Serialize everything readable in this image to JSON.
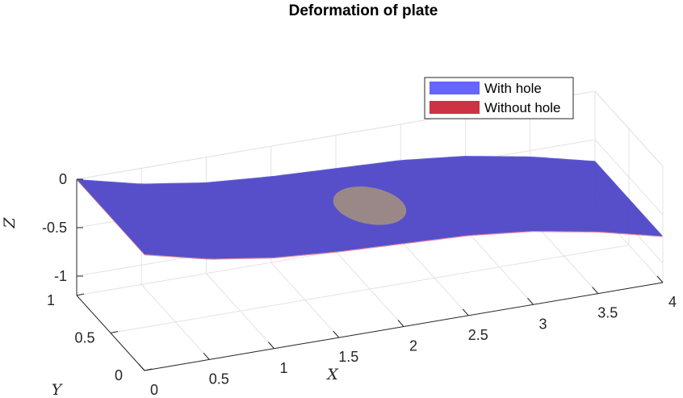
{
  "chart_data": {
    "type": "surface3d",
    "title": "Deformation of plate",
    "xlabel": "X",
    "ylabel": "Y",
    "zlabel": "Z",
    "x_ticks": [
      "0",
      "0.5",
      "1",
      "1.5",
      "2",
      "2.5",
      "3",
      "3.5",
      "4"
    ],
    "y_ticks": [
      "0",
      "0.5",
      "1"
    ],
    "z_ticks": [
      "0",
      "-0.5",
      "-1"
    ],
    "xlim": [
      0,
      4
    ],
    "ylim": [
      0,
      1
    ],
    "zlim": [
      -1.2,
      0
    ],
    "grid": true,
    "legend_position": "top-right",
    "series": [
      {
        "name": "With hole",
        "color": "#6666ff",
        "hole": {
          "center_x": 2.0,
          "center_y": 0.5,
          "radius": 0.25
        }
      },
      {
        "name": "Without hole",
        "color": "#cc3344"
      }
    ],
    "deflection_profile": {
      "x": [
        0,
        0.5,
        1,
        1.5,
        2,
        2.5,
        3,
        3.5,
        4
      ],
      "z": [
        0,
        -0.16,
        -0.26,
        -0.31,
        -0.34,
        -0.37,
        -0.44,
        -0.56,
        -0.72
      ]
    }
  }
}
